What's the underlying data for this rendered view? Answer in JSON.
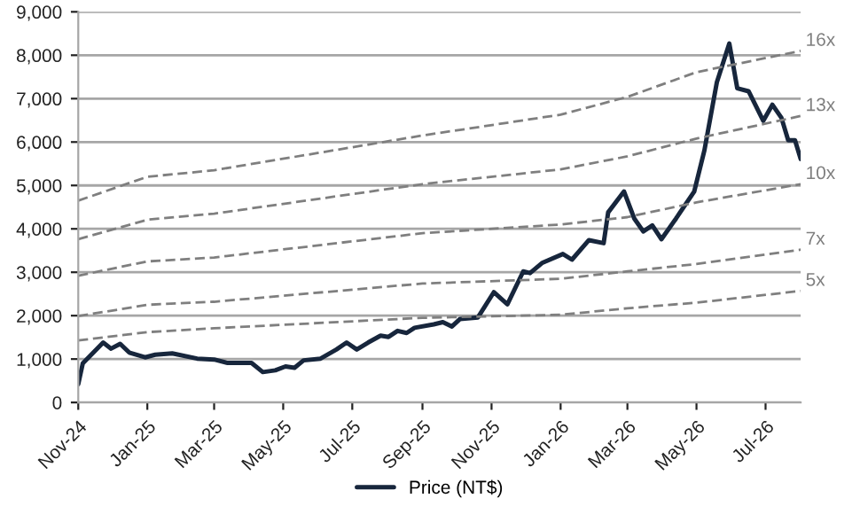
{
  "chart_data": {
    "type": "line",
    "ylim": [
      0,
      9000
    ],
    "yticks": [
      0,
      {
        "value": 1000,
        "label": "1,000"
      },
      {
        "value": 2000,
        "label": "2,000"
      },
      {
        "value": 3000,
        "label": "3,000"
      },
      {
        "value": 4000,
        "label": "4,000"
      },
      {
        "value": 5000,
        "label": "5,000"
      },
      {
        "value": 6000,
        "label": "6,000"
      },
      {
        "value": 7000,
        "label": "7,000"
      },
      {
        "value": 8000,
        "label": "8,000"
      },
      {
        "value": 9000,
        "label": "9,000"
      }
    ],
    "xlim": [
      "2024-11-01",
      "2026-08-01"
    ],
    "xticks": [
      {
        "value": "2024-11-01",
        "label": "Nov-24"
      },
      {
        "value": "2025-01-01",
        "label": "Jan-25"
      },
      {
        "value": "2025-03-01",
        "label": "Mar-25"
      },
      {
        "value": "2025-05-01",
        "label": "May-25"
      },
      {
        "value": "2025-07-01",
        "label": "Jul-25"
      },
      {
        "value": "2025-09-01",
        "label": "Sep-25"
      },
      {
        "value": "2025-11-01",
        "label": "Nov-25"
      },
      {
        "value": "2026-01-01",
        "label": "Jan-26"
      },
      {
        "value": "2026-03-01",
        "label": "Mar-26"
      },
      {
        "value": "2026-05-01",
        "label": "May-26"
      },
      {
        "value": "2026-07-01",
        "label": "Jul-26"
      }
    ],
    "grid": "y",
    "legend": "bottom",
    "marker": "none",
    "series": [
      {
        "name": "Price (NT$)",
        "color": "#17263c",
        "line_style": "solid",
        "x": [
          "2024-11-01",
          "2024-11-05",
          "2024-11-23",
          "2024-11-30",
          "2024-12-08",
          "2024-12-16",
          "2024-12-30",
          "2025-01-08",
          "2025-01-23",
          "2025-02-14",
          "2025-03-01",
          "2025-03-13",
          "2025-04-03",
          "2025-04-13",
          "2025-04-24",
          "2025-05-03",
          "2025-05-11",
          "2025-05-19",
          "2025-06-03",
          "2025-06-17",
          "2025-06-26",
          "2025-07-05",
          "2025-07-15",
          "2025-07-26",
          "2025-08-02",
          "2025-08-10",
          "2025-08-18",
          "2025-08-25",
          "2025-09-11",
          "2025-09-19",
          "2025-09-27",
          "2025-10-04",
          "2025-10-20",
          "2025-11-03",
          "2025-11-15",
          "2025-11-29",
          "2025-12-05",
          "2025-12-16",
          "2026-01-03",
          "2026-01-11",
          "2026-01-26",
          "2026-02-08",
          "2026-02-12",
          "2026-02-26",
          "2026-03-07",
          "2026-03-15",
          "2026-03-23",
          "2026-03-31",
          "2026-04-13",
          "2026-04-29",
          "2026-05-08",
          "2026-05-19",
          "2026-05-30",
          "2026-06-06",
          "2026-06-16",
          "2026-06-29",
          "2026-07-07",
          "2026-07-15",
          "2026-07-21",
          "2026-07-27",
          "2026-08-01"
        ],
        "values": [
          420,
          900,
          1380,
          1240,
          1350,
          1150,
          1040,
          1100,
          1130,
          1010,
          990,
          910,
          910,
          700,
          740,
          830,
          800,
          970,
          1010,
          1220,
          1380,
          1220,
          1380,
          1540,
          1510,
          1650,
          1600,
          1720,
          1800,
          1850,
          1750,
          1920,
          1960,
          2540,
          2260,
          3020,
          2980,
          3220,
          3420,
          3290,
          3740,
          3670,
          4380,
          4860,
          4240,
          3940,
          4080,
          3760,
          4240,
          4860,
          5810,
          7380,
          8270,
          7240,
          7170,
          6490,
          6860,
          6560,
          6040,
          6040,
          5610
        ]
      },
      {
        "name": "16x",
        "color": "#7f7f7f",
        "line_style": "dashed",
        "x": [
          "2024-11-01",
          "2025-01-01",
          "2025-03-01",
          "2025-09-01",
          "2026-01-01",
          "2026-03-01",
          "2026-05-01",
          "2026-08-01"
        ],
        "values": [
          4650,
          5200,
          5350,
          6150,
          6630,
          7040,
          7610,
          8100
        ]
      },
      {
        "name": "13x",
        "color": "#7f7f7f",
        "line_style": "dashed",
        "x": [
          "2024-11-01",
          "2025-01-01",
          "2025-03-01",
          "2025-09-01",
          "2026-01-01",
          "2026-03-01",
          "2026-05-01",
          "2026-08-01"
        ],
        "values": [
          3760,
          4210,
          4350,
          5030,
          5370,
          5670,
          6080,
          6600
        ]
      },
      {
        "name": "10x",
        "color": "#7f7f7f",
        "line_style": "dashed",
        "x": [
          "2024-11-01",
          "2025-01-01",
          "2025-03-01",
          "2025-09-01",
          "2026-01-01",
          "2026-03-01",
          "2026-05-01",
          "2026-08-01"
        ],
        "values": [
          2920,
          3250,
          3340,
          3900,
          4100,
          4270,
          4610,
          5030
        ]
      },
      {
        "name": "7x",
        "color": "#7f7f7f",
        "line_style": "dashed",
        "x": [
          "2024-11-01",
          "2025-01-01",
          "2025-03-01",
          "2025-09-01",
          "2026-01-01",
          "2026-03-01",
          "2026-05-01",
          "2026-08-01"
        ],
        "values": [
          1990,
          2250,
          2320,
          2740,
          2850,
          3020,
          3190,
          3520
        ]
      },
      {
        "name": "5x",
        "color": "#7f7f7f",
        "line_style": "dashed",
        "x": [
          "2024-11-01",
          "2025-01-01",
          "2025-03-01",
          "2025-09-01",
          "2026-01-01",
          "2026-03-01",
          "2026-05-01",
          "2026-08-01"
        ],
        "values": [
          1430,
          1620,
          1710,
          1950,
          2020,
          2170,
          2300,
          2570
        ]
      }
    ]
  }
}
